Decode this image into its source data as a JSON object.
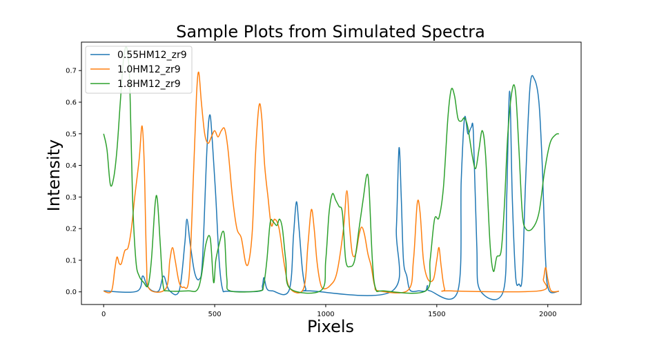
{
  "chart_data": {
    "type": "line",
    "title": "Sample Plots from Simulated Spectra",
    "xlabel": "Pixels",
    "ylabel": "Intensity",
    "xlim": [
      -100,
      2150
    ],
    "ylim": [
      -0.04,
      0.79
    ],
    "xticks": [
      0,
      500,
      1000,
      1500,
      2000
    ],
    "yticks": [
      0.0,
      0.1,
      0.2,
      0.3,
      0.4,
      0.5,
      0.6,
      0.7
    ],
    "xtick_labels": [
      "0",
      "500",
      "1000",
      "1500",
      "2000"
    ],
    "ytick_labels": [
      "0.0",
      "0.1",
      "0.2",
      "0.3",
      "0.4",
      "0.5",
      "0.6",
      "0.7"
    ],
    "legend_position": "top-left",
    "grid": false,
    "series": [
      {
        "name": "0.55HM12_zr9",
        "color": "#1f77b4",
        "points": [
          [
            0,
            0.003
          ],
          [
            150,
            0.002
          ],
          [
            175,
            0.05
          ],
          [
            195,
            0.02
          ],
          [
            220,
            0.003
          ],
          [
            250,
            0.005
          ],
          [
            270,
            0.05
          ],
          [
            295,
            0.005
          ],
          [
            340,
            0.003
          ],
          [
            365,
            0.15
          ],
          [
            375,
            0.23
          ],
          [
            390,
            0.15
          ],
          [
            410,
            0.06
          ],
          [
            430,
            0.04
          ],
          [
            445,
            0.1
          ],
          [
            465,
            0.45
          ],
          [
            478,
            0.56
          ],
          [
            490,
            0.47
          ],
          [
            505,
            0.3
          ],
          [
            520,
            0.1
          ],
          [
            535,
            0.01
          ],
          [
            560,
            0.002
          ],
          [
            700,
            0.002
          ],
          [
            715,
            0.02
          ],
          [
            722,
            0.045
          ],
          [
            735,
            0.01
          ],
          [
            760,
            0.003
          ],
          [
            835,
            0.005
          ],
          [
            855,
            0.18
          ],
          [
            868,
            0.285
          ],
          [
            880,
            0.2
          ],
          [
            895,
            0.07
          ],
          [
            910,
            0.01
          ],
          [
            930,
            0.003
          ],
          [
            1300,
            0.003
          ],
          [
            1318,
            0.2
          ],
          [
            1330,
            0.455
          ],
          [
            1340,
            0.3
          ],
          [
            1350,
            0.1
          ],
          [
            1365,
            0.05
          ],
          [
            1380,
            0.005
          ],
          [
            1420,
            0.003
          ],
          [
            1450,
            0.003
          ],
          [
            1458,
            0.02
          ],
          [
            1470,
            0.003
          ],
          [
            1595,
            0.003
          ],
          [
            1610,
            0.35
          ],
          [
            1625,
            0.55
          ],
          [
            1640,
            0.5
          ],
          [
            1655,
            0.52
          ],
          [
            1665,
            0.5
          ],
          [
            1680,
            0.15
          ],
          [
            1695,
            0.005
          ],
          [
            1800,
            0.003
          ],
          [
            1815,
            0.3
          ],
          [
            1828,
            0.635
          ],
          [
            1840,
            0.3
          ],
          [
            1855,
            0.05
          ],
          [
            1870,
            0.025
          ],
          [
            1885,
            0.05
          ],
          [
            1900,
            0.35
          ],
          [
            1920,
            0.65
          ],
          [
            1940,
            0.672
          ],
          [
            1960,
            0.6
          ],
          [
            1975,
            0.4
          ],
          [
            1990,
            0.1
          ],
          [
            2005,
            0.005
          ],
          [
            2050,
            0.002
          ]
        ]
      },
      {
        "name": "1.0HM12_zr9",
        "color": "#ff7f0e",
        "points": [
          [
            0,
            0.002
          ],
          [
            35,
            0.002
          ],
          [
            50,
            0.07
          ],
          [
            60,
            0.11
          ],
          [
            70,
            0.09
          ],
          [
            80,
            0.09
          ],
          [
            95,
            0.13
          ],
          [
            110,
            0.14
          ],
          [
            125,
            0.2
          ],
          [
            140,
            0.3
          ],
          [
            160,
            0.42
          ],
          [
            173,
            0.525
          ],
          [
            183,
            0.4
          ],
          [
            193,
            0.1
          ],
          [
            205,
            0.01
          ],
          [
            280,
            0.01
          ],
          [
            298,
            0.1
          ],
          [
            310,
            0.14
          ],
          [
            322,
            0.1
          ],
          [
            340,
            0.03
          ],
          [
            360,
            0.015
          ],
          [
            385,
            0.05
          ],
          [
            405,
            0.38
          ],
          [
            418,
            0.62
          ],
          [
            428,
            0.695
          ],
          [
            440,
            0.6
          ],
          [
            455,
            0.5
          ],
          [
            470,
            0.47
          ],
          [
            485,
            0.49
          ],
          [
            500,
            0.51
          ],
          [
            515,
            0.49
          ],
          [
            530,
            0.51
          ],
          [
            545,
            0.515
          ],
          [
            560,
            0.45
          ],
          [
            580,
            0.3
          ],
          [
            600,
            0.2
          ],
          [
            620,
            0.17
          ],
          [
            640,
            0.09
          ],
          [
            655,
            0.1
          ],
          [
            670,
            0.2
          ],
          [
            685,
            0.45
          ],
          [
            700,
            0.59
          ],
          [
            712,
            0.55
          ],
          [
            725,
            0.4
          ],
          [
            740,
            0.3
          ],
          [
            755,
            0.21
          ],
          [
            770,
            0.23
          ],
          [
            790,
            0.2
          ],
          [
            815,
            0.08
          ],
          [
            840,
            0.01
          ],
          [
            900,
            0.01
          ],
          [
            920,
            0.15
          ],
          [
            935,
            0.26
          ],
          [
            948,
            0.2
          ],
          [
            960,
            0.1
          ],
          [
            975,
            0.03
          ],
          [
            990,
            0.01
          ],
          [
            1020,
            0.02
          ],
          [
            1050,
            0.06
          ],
          [
            1080,
            0.2
          ],
          [
            1095,
            0.32
          ],
          [
            1108,
            0.2
          ],
          [
            1120,
            0.12
          ],
          [
            1135,
            0.12
          ],
          [
            1150,
            0.18
          ],
          [
            1162,
            0.205
          ],
          [
            1175,
            0.18
          ],
          [
            1190,
            0.12
          ],
          [
            1205,
            0.08
          ],
          [
            1220,
            0.02
          ],
          [
            1240,
            0.003
          ],
          [
            1370,
            0.005
          ],
          [
            1395,
            0.1
          ],
          [
            1412,
            0.28
          ],
          [
            1425,
            0.25
          ],
          [
            1440,
            0.1
          ],
          [
            1460,
            0.04
          ],
          [
            1485,
            0.04
          ],
          [
            1500,
            0.1
          ],
          [
            1510,
            0.14
          ],
          [
            1520,
            0.08
          ],
          [
            1535,
            0.01
          ],
          [
            1560,
            0.003
          ],
          [
            1960,
            0.003
          ],
          [
            1980,
            0.04
          ],
          [
            1990,
            0.077
          ],
          [
            2000,
            0.04
          ],
          [
            2015,
            0.003
          ],
          [
            2050,
            0.002
          ]
        ]
      },
      {
        "name": "1.8HM12_zr9",
        "color": "#2ca02c",
        "points": [
          [
            0,
            0.5
          ],
          [
            15,
            0.45
          ],
          [
            30,
            0.34
          ],
          [
            45,
            0.36
          ],
          [
            60,
            0.45
          ],
          [
            75,
            0.6
          ],
          [
            90,
            0.74
          ],
          [
            105,
            0.77
          ],
          [
            118,
            0.65
          ],
          [
            130,
            0.3
          ],
          [
            145,
            0.1
          ],
          [
            160,
            0.05
          ],
          [
            180,
            0.03
          ],
          [
            200,
            0.02
          ],
          [
            215,
            0.1
          ],
          [
            232,
            0.28
          ],
          [
            242,
            0.29
          ],
          [
            255,
            0.15
          ],
          [
            268,
            0.02
          ],
          [
            290,
            0.003
          ],
          [
            380,
            0.003
          ],
          [
            420,
            0.005
          ],
          [
            440,
            0.05
          ],
          [
            460,
            0.15
          ],
          [
            480,
            0.17
          ],
          [
            495,
            0.03
          ],
          [
            505,
            0.1
          ],
          [
            520,
            0.15
          ],
          [
            535,
            0.19
          ],
          [
            545,
            0.17
          ],
          [
            555,
            0.04
          ],
          [
            570,
            0.003
          ],
          [
            700,
            0.003
          ],
          [
            720,
            0.02
          ],
          [
            735,
            0.1
          ],
          [
            750,
            0.22
          ],
          [
            765,
            0.22
          ],
          [
            780,
            0.21
          ],
          [
            792,
            0.23
          ],
          [
            805,
            0.2
          ],
          [
            820,
            0.1
          ],
          [
            840,
            0.01
          ],
          [
            980,
            0.005
          ],
          [
            1000,
            0.1
          ],
          [
            1015,
            0.25
          ],
          [
            1030,
            0.31
          ],
          [
            1045,
            0.29
          ],
          [
            1060,
            0.27
          ],
          [
            1075,
            0.25
          ],
          [
            1090,
            0.1
          ],
          [
            1110,
            0.08
          ],
          [
            1130,
            0.1
          ],
          [
            1150,
            0.2
          ],
          [
            1170,
            0.3
          ],
          [
            1185,
            0.37
          ],
          [
            1195,
            0.33
          ],
          [
            1210,
            0.1
          ],
          [
            1225,
            0.01
          ],
          [
            1260,
            0.003
          ],
          [
            1450,
            0.003
          ],
          [
            1470,
            0.1
          ],
          [
            1490,
            0.23
          ],
          [
            1510,
            0.235
          ],
          [
            1530,
            0.33
          ],
          [
            1550,
            0.55
          ],
          [
            1565,
            0.64
          ],
          [
            1580,
            0.62
          ],
          [
            1595,
            0.55
          ],
          [
            1610,
            0.54
          ],
          [
            1625,
            0.55
          ],
          [
            1640,
            0.52
          ],
          [
            1660,
            0.43
          ],
          [
            1675,
            0.39
          ],
          [
            1690,
            0.45
          ],
          [
            1705,
            0.51
          ],
          [
            1720,
            0.43
          ],
          [
            1740,
            0.15
          ],
          [
            1755,
            0.065
          ],
          [
            1770,
            0.11
          ],
          [
            1790,
            0.13
          ],
          [
            1805,
            0.28
          ],
          [
            1820,
            0.5
          ],
          [
            1840,
            0.64
          ],
          [
            1855,
            0.63
          ],
          [
            1870,
            0.45
          ],
          [
            1885,
            0.25
          ],
          [
            1900,
            0.2
          ],
          [
            1930,
            0.2
          ],
          [
            1960,
            0.25
          ],
          [
            1985,
            0.38
          ],
          [
            2010,
            0.47
          ],
          [
            2035,
            0.497
          ],
          [
            2050,
            0.5
          ]
        ]
      }
    ]
  }
}
